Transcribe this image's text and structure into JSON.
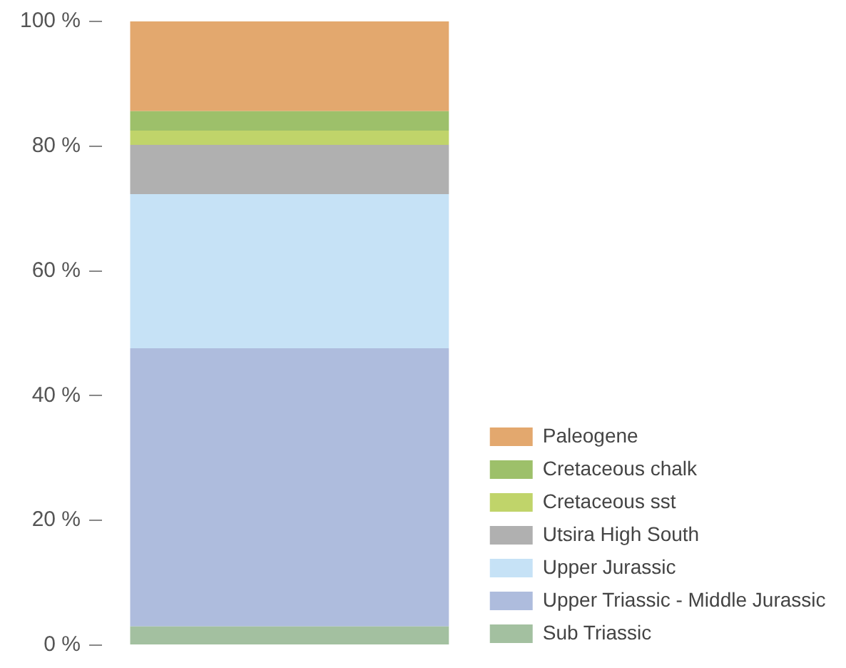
{
  "chart_data": {
    "type": "bar",
    "stacked": true,
    "categories": [
      null
    ],
    "series": [
      {
        "name": "Sub Triassic",
        "color": "#a3c0a0",
        "values": [
          3.0
        ]
      },
      {
        "name": "Upper Triassic - Middle Jurassic",
        "color": "#aebcdd",
        "values": [
          44.6
        ]
      },
      {
        "name": "Upper Jurassic",
        "color": "#c6e2f6",
        "values": [
          24.7
        ]
      },
      {
        "name": "Utsira High South",
        "color": "#b0b0b0",
        "values": [
          7.9
        ]
      },
      {
        "name": "Cretaceous sst",
        "color": "#c0d46a",
        "values": [
          2.3
        ]
      },
      {
        "name": "Cretaceous chalk",
        "color": "#9dc06a",
        "values": [
          3.1
        ]
      },
      {
        "name": "Paleogene",
        "color": "#e3a86e",
        "values": [
          14.4
        ]
      }
    ],
    "ylim": [
      0,
      100
    ],
    "yticks": [
      {
        "value": 0,
        "label": "0 %"
      },
      {
        "value": 20,
        "label": "20 %"
      },
      {
        "value": 40,
        "label": "40 %"
      },
      {
        "value": 60,
        "label": "60 %"
      },
      {
        "value": 80,
        "label": "80 %"
      },
      {
        "value": 100,
        "label": "100 %"
      }
    ],
    "grid": false,
    "legend": "right",
    "tick_labels": "y"
  }
}
